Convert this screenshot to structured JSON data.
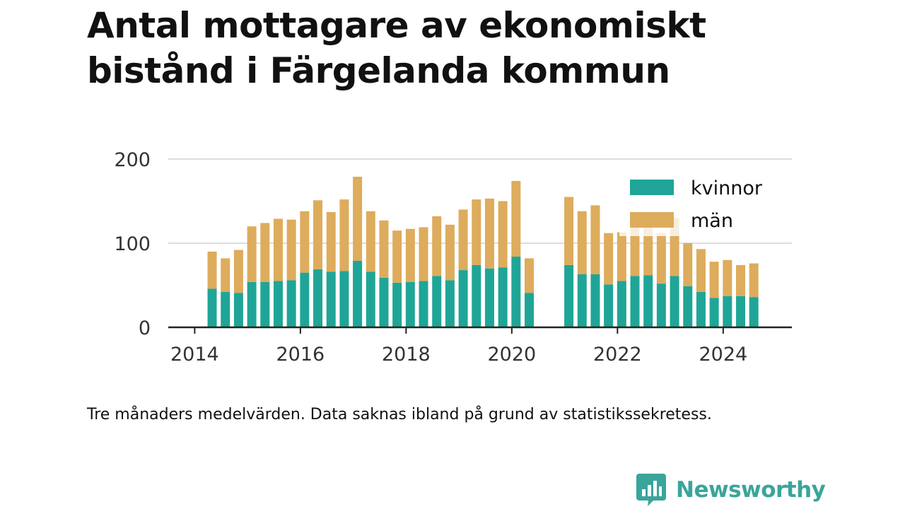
{
  "title": "Antal mottagare av ekonomiskt bistånd i Färgelanda kommun",
  "note": "Tre månaders medelvärden. Data saknas ibland på grund av statistikssekretess.",
  "brand": {
    "name": "Newsworthy",
    "icon": "bar-chart-speech-bubble-icon",
    "color": "#3aa59a"
  },
  "colors": {
    "kvinnor": "#1fa597",
    "man": "#ddac5c",
    "grid": "#dddddd",
    "axis": "#222222"
  },
  "chart_data": {
    "type": "bar",
    "stacked": true,
    "title": "Antal mottagare av ekonomiskt bistånd i Färgelanda kommun",
    "xlabel": "",
    "ylabel": "",
    "ylim": [
      0,
      200
    ],
    "yticks": [
      0,
      100,
      200
    ],
    "xticks": [
      2014,
      2016,
      2018,
      2020,
      2022,
      2024
    ],
    "xlim": [
      2013.5,
      2025.3
    ],
    "grid": true,
    "legend": "top-right",
    "x": [
      2014.33,
      2014.58,
      2014.83,
      2015.08,
      2015.33,
      2015.58,
      2015.83,
      2016.08,
      2016.33,
      2016.58,
      2016.83,
      2017.08,
      2017.33,
      2017.58,
      2017.83,
      2018.08,
      2018.33,
      2018.58,
      2018.83,
      2019.08,
      2019.33,
      2019.58,
      2019.83,
      2020.08,
      2020.33,
      2021.08,
      2021.33,
      2021.58,
      2021.83,
      2022.08,
      2022.33,
      2022.58,
      2022.83,
      2023.08,
      2023.33,
      2023.58,
      2023.83,
      2024.08,
      2024.33,
      2024.58
    ],
    "series": [
      {
        "name": "kvinnor",
        "color": "#1fa597",
        "values": [
          46,
          42,
          41,
          54,
          54,
          55,
          56,
          65,
          69,
          66,
          67,
          79,
          66,
          59,
          53,
          54,
          55,
          61,
          56,
          68,
          74,
          70,
          71,
          84,
          41,
          74,
          63,
          63,
          51,
          55,
          61,
          62,
          52,
          61,
          49,
          42,
          35,
          37,
          37,
          36
        ]
      },
      {
        "name": "män",
        "color": "#ddac5c",
        "values": [
          44,
          40,
          51,
          66,
          70,
          74,
          72,
          73,
          82,
          71,
          85,
          100,
          72,
          68,
          62,
          63,
          64,
          71,
          66,
          72,
          78,
          83,
          79,
          90,
          41,
          81,
          75,
          82,
          61,
          58,
          60,
          60,
          60,
          69,
          51,
          51,
          43,
          43,
          37,
          40
        ]
      }
    ]
  }
}
